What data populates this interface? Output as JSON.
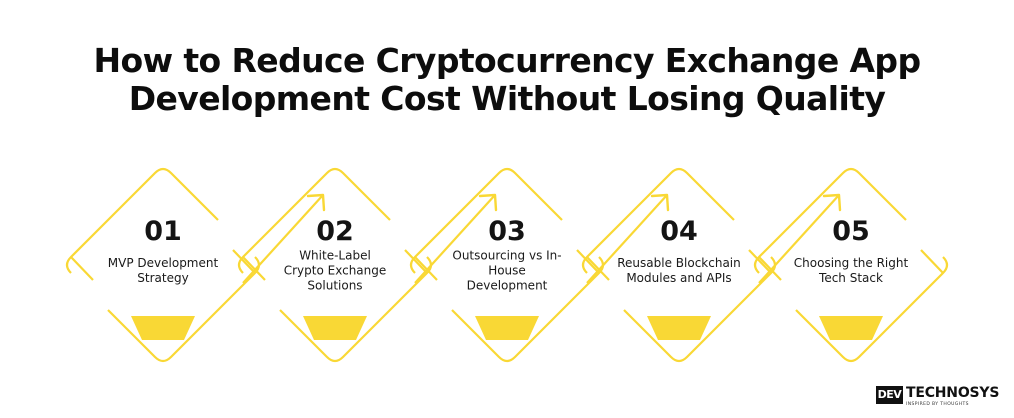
{
  "title": {
    "line1": "How to Reduce Cryptocurrency Exchange App",
    "line2": "Development Cost Without Losing Quality"
  },
  "colors": {
    "accent": "#F9D835",
    "text": "#111111",
    "background": "#FFFFFF"
  },
  "steps": [
    {
      "number": "01",
      "label_lines": [
        "MVP Development",
        "Strategy"
      ]
    },
    {
      "number": "02",
      "label_lines": [
        "White-Label",
        "Crypto Exchange",
        "Solutions"
      ]
    },
    {
      "number": "03",
      "label_lines": [
        "Outsourcing vs In-",
        "House",
        "Development"
      ]
    },
    {
      "number": "04",
      "label_lines": [
        "Reusable Blockchain",
        "Modules and APIs"
      ]
    },
    {
      "number": "05",
      "label_lines": [
        "Choosing the Right",
        "Tech Stack"
      ]
    }
  ],
  "logo": {
    "mark": "DEV",
    "wordmark": "TECHNOSYS",
    "tagline": "INSPIRED BY THOUGHTS"
  }
}
